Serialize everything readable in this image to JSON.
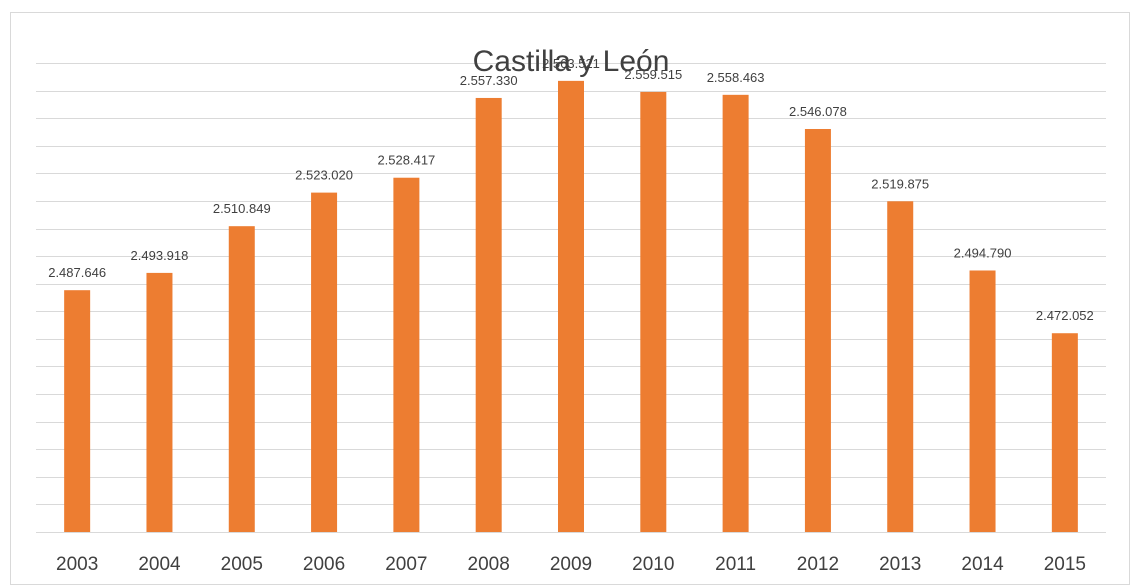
{
  "chart_data": {
    "type": "bar",
    "title": "Castilla y León",
    "xlabel": "",
    "ylabel": "",
    "categories": [
      "2003",
      "2004",
      "2005",
      "2006",
      "2007",
      "2008",
      "2009",
      "2010",
      "2011",
      "2012",
      "2013",
      "2014",
      "2015"
    ],
    "values": [
      2487646,
      2493918,
      2510849,
      2523020,
      2528417,
      2557330,
      2563521,
      2559515,
      2558463,
      2546078,
      2519875,
      2494790,
      2472052
    ],
    "value_labels": [
      "2.487.646",
      "2.493.918",
      "2.510.849",
      "2.523.020",
      "2.528.417",
      "2.557.330",
      "2.563.521",
      "2.559.515",
      "2.558.463",
      "2.546.078",
      "2.519.875",
      "2.494.790",
      "2.472.052"
    ],
    "ylim": [
      2400000,
      2570000
    ],
    "gridlines": [
      2410000,
      2420000,
      2430000,
      2440000,
      2450000,
      2460000,
      2470000
    ],
    "grid": true,
    "legend": "none",
    "y_axis_labels_shown": false,
    "bar_color": "#ED7D31"
  }
}
